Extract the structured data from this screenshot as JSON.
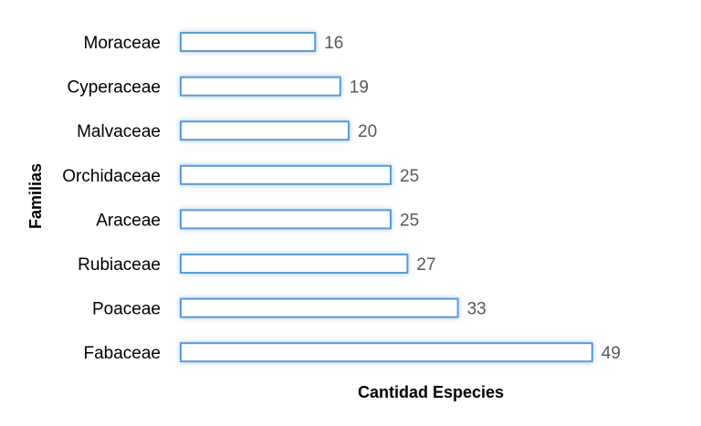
{
  "chart_data": {
    "type": "bar",
    "orientation": "horizontal",
    "categories": [
      "Moraceae",
      "Cyperaceae",
      "Malvaceae",
      "Orchidaceae",
      "Araceae",
      "Rubiaceae",
      "Poaceae",
      "Fabaceae"
    ],
    "values": [
      16,
      19,
      20,
      25,
      25,
      27,
      33,
      49
    ],
    "title": "",
    "xlabel": "Cantidad Especies",
    "ylabel": "Familias",
    "xlim": [
      0,
      49
    ],
    "grid": false,
    "legend": "none",
    "data_labels": true,
    "colors": {
      "bar_fill": "#ffffff",
      "bar_border": "#5b9bd5",
      "bar_glow": "#9dc3e6",
      "value_label": "#595959",
      "text": "#000000"
    }
  }
}
